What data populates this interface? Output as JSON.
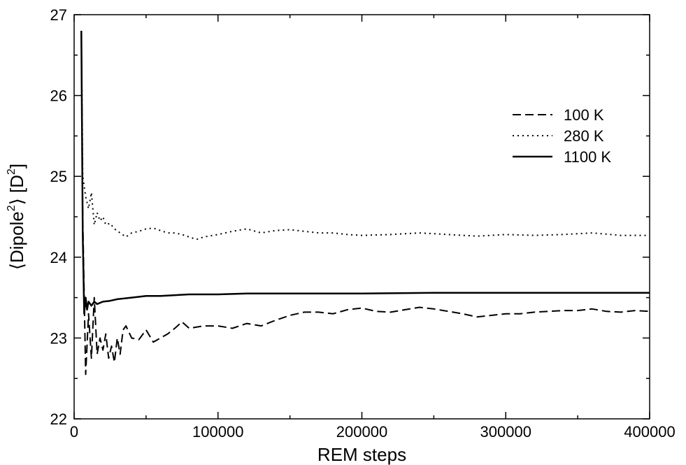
{
  "chart_data": {
    "type": "line",
    "title": "",
    "xlabel": "REM steps",
    "ylabel": {
      "prefix": "⟨Dipole",
      "sup1": "2",
      "mid": "⟩ [D",
      "sup2": "2",
      "suffix": "]"
    },
    "xlim": [
      0,
      400000
    ],
    "ylim": [
      22,
      27
    ],
    "x_ticks": [
      0,
      100000,
      200000,
      300000,
      400000
    ],
    "x_tick_labels": [
      "0",
      "100000",
      "200000",
      "300000",
      "400000"
    ],
    "y_ticks": [
      22,
      23,
      24,
      25,
      26,
      27
    ],
    "y_tick_labels": [
      "22",
      "23",
      "24",
      "25",
      "26",
      "27"
    ],
    "grid": false,
    "legend_position": "top-right",
    "series": [
      {
        "name": "100 K",
        "style": "dashed",
        "color": "#000000",
        "x": [
          5000,
          6000,
          8000,
          10000,
          12000,
          14000,
          16000,
          18000,
          20000,
          22000,
          24000,
          26000,
          28000,
          30000,
          32000,
          34000,
          36000,
          40000,
          45000,
          50000,
          55000,
          60000,
          65000,
          70000,
          75000,
          80000,
          90000,
          100000,
          110000,
          120000,
          130000,
          140000,
          150000,
          160000,
          170000,
          180000,
          190000,
          200000,
          210000,
          220000,
          230000,
          240000,
          250000,
          260000,
          270000,
          280000,
          290000,
          300000,
          310000,
          320000,
          330000,
          340000,
          350000,
          360000,
          370000,
          380000,
          390000,
          400000
        ],
        "values": [
          26.8,
          24.5,
          22.55,
          23.3,
          22.75,
          23.5,
          22.8,
          23.0,
          22.85,
          23.05,
          22.75,
          22.9,
          22.7,
          23.0,
          22.8,
          23.1,
          23.15,
          23.0,
          22.98,
          23.1,
          22.95,
          23.0,
          23.05,
          23.12,
          23.2,
          23.12,
          23.15,
          23.15,
          23.12,
          23.18,
          23.15,
          23.22,
          23.28,
          23.32,
          23.32,
          23.3,
          23.35,
          23.37,
          23.33,
          23.32,
          23.35,
          23.38,
          23.36,
          23.33,
          23.3,
          23.26,
          23.28,
          23.3,
          23.3,
          23.32,
          23.33,
          23.34,
          23.34,
          23.36,
          23.33,
          23.32,
          23.34,
          23.33
        ]
      },
      {
        "name": "280 K",
        "style": "dotted",
        "color": "#000000",
        "x": [
          5000,
          6000,
          8000,
          10000,
          12000,
          14000,
          16000,
          18000,
          20000,
          22000,
          25000,
          28000,
          32000,
          36000,
          40000,
          45000,
          50000,
          55000,
          60000,
          65000,
          70000,
          75000,
          80000,
          85000,
          90000,
          100000,
          110000,
          120000,
          130000,
          140000,
          150000,
          160000,
          170000,
          180000,
          190000,
          200000,
          220000,
          240000,
          260000,
          280000,
          300000,
          320000,
          340000,
          360000,
          380000,
          400000
        ],
        "values": [
          26.8,
          25.0,
          24.75,
          24.6,
          24.8,
          24.4,
          24.55,
          24.45,
          24.5,
          24.4,
          24.42,
          24.35,
          24.3,
          24.25,
          24.3,
          24.32,
          24.35,
          24.36,
          24.33,
          24.3,
          24.3,
          24.28,
          24.25,
          24.22,
          24.25,
          24.28,
          24.32,
          24.35,
          24.3,
          24.33,
          24.34,
          24.32,
          24.3,
          24.3,
          24.28,
          24.27,
          24.28,
          24.3,
          24.28,
          24.26,
          24.28,
          24.27,
          24.28,
          24.3,
          24.27,
          24.27
        ]
      },
      {
        "name": "1100 K",
        "style": "solid",
        "color": "#000000",
        "x": [
          5000,
          6000,
          7000,
          8000,
          9000,
          10000,
          12000,
          14000,
          16000,
          20000,
          25000,
          30000,
          40000,
          50000,
          60000,
          80000,
          100000,
          120000,
          150000,
          200000,
          250000,
          300000,
          350000,
          400000
        ],
        "values": [
          26.8,
          24.3,
          23.3,
          23.5,
          23.35,
          23.45,
          23.4,
          23.45,
          23.42,
          23.45,
          23.46,
          23.48,
          23.5,
          23.52,
          23.52,
          23.54,
          23.54,
          23.55,
          23.55,
          23.55,
          23.56,
          23.56,
          23.56,
          23.56
        ]
      }
    ]
  }
}
